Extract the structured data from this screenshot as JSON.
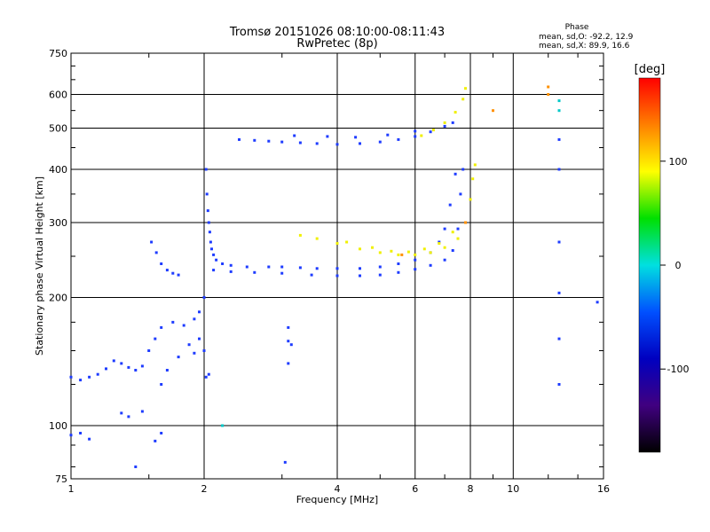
{
  "chart_data": {
    "type": "scatter",
    "title": "Tromsø 20151026 08:10:00-08:11:43",
    "subtitle": "RwPretec (8p)",
    "phase_info": {
      "heading": "Phase",
      "line_o": "mean, sd,O: -92.2, 12.9",
      "line_x": "mean, sd,X:  89.9, 16.6"
    },
    "xlabel": "Frequency [MHz]",
    "ylabel": "Stationary phase Virtual Height [km]",
    "x_scale": "log2",
    "y_scale": "log",
    "xlim": [
      1,
      16
    ],
    "ylim": [
      75,
      750
    ],
    "x_ticks": [
      1,
      2,
      4,
      6,
      8,
      10,
      16
    ],
    "x_tick_labels": [
      "1",
      "2",
      "4",
      "6",
      "8",
      "10",
      "16"
    ],
    "y_ticks": [
      75,
      100,
      200,
      300,
      400,
      500,
      600,
      750
    ],
    "y_tick_labels": [
      "75",
      "100",
      "200",
      "300",
      "400",
      "500",
      "600",
      "750"
    ],
    "grid": true,
    "colorbar": {
      "label": "[deg]",
      "range": [
        -180,
        180
      ],
      "ticks": [
        100,
        0,
        -100
      ],
      "tick_labels": [
        "100",
        "0",
        "-100"
      ],
      "colors": [
        "#ff0000",
        "#ff8000",
        "#ffff00",
        "#00e000",
        "#00e0e0",
        "#0050ff",
        "#0000c0",
        "#400080",
        "#000000"
      ]
    },
    "series": [
      {
        "color": "#1e3cff",
        "points": [
          [
            2.02,
            400
          ],
          [
            2.03,
            350
          ],
          [
            2.04,
            320
          ],
          [
            2.05,
            300
          ],
          [
            2.06,
            285
          ],
          [
            2.07,
            270
          ],
          [
            2.08,
            260
          ],
          [
            2.1,
            252
          ],
          [
            2.13,
            245
          ],
          [
            2.2,
            240
          ],
          [
            2.3,
            238
          ],
          [
            2.5,
            236
          ],
          [
            2.8,
            236
          ],
          [
            3.0,
            236
          ],
          [
            3.3,
            235
          ],
          [
            3.6,
            234
          ],
          [
            4.0,
            234
          ],
          [
            4.5,
            234
          ],
          [
            5.0,
            236
          ],
          [
            5.5,
            240
          ],
          [
            6.0,
            245
          ],
          [
            6.5,
            255
          ],
          [
            6.8,
            270
          ],
          [
            7.0,
            290
          ],
          [
            7.2,
            330
          ],
          [
            7.4,
            390
          ],
          [
            2.1,
            232
          ],
          [
            2.3,
            230
          ],
          [
            2.6,
            229
          ],
          [
            3.0,
            228
          ],
          [
            3.5,
            226
          ],
          [
            4.0,
            225
          ],
          [
            4.5,
            225
          ],
          [
            5.0,
            226
          ],
          [
            5.5,
            229
          ],
          [
            6.0,
            233
          ],
          [
            6.5,
            238
          ],
          [
            7.0,
            245
          ],
          [
            7.3,
            258
          ],
          [
            7.5,
            290
          ],
          [
            7.6,
            350
          ],
          [
            7.7,
            400
          ]
        ]
      },
      {
        "color": "#1e3cff",
        "points": [
          [
            2.4,
            470
          ],
          [
            2.6,
            468
          ],
          [
            2.8,
            466
          ],
          [
            3.0,
            464
          ],
          [
            3.3,
            462
          ],
          [
            3.6,
            460
          ],
          [
            4.0,
            458
          ],
          [
            4.5,
            460
          ],
          [
            5.0,
            464
          ],
          [
            5.5,
            470
          ],
          [
            6.0,
            478
          ],
          [
            6.5,
            490
          ],
          [
            7.0,
            505
          ],
          [
            7.3,
            515
          ],
          [
            3.2,
            480
          ],
          [
            3.8,
            478
          ],
          [
            4.4,
            476
          ],
          [
            5.2,
            482
          ],
          [
            6.0,
            492
          ]
        ]
      },
      {
        "color": "#f0f000",
        "points": [
          [
            3.3,
            280
          ],
          [
            3.6,
            275
          ],
          [
            4.0,
            268
          ],
          [
            4.5,
            260
          ],
          [
            5.0,
            255
          ],
          [
            5.5,
            252
          ],
          [
            6.0,
            252
          ],
          [
            6.5,
            255
          ],
          [
            7.0,
            262
          ],
          [
            7.5,
            275
          ],
          [
            7.8,
            300
          ],
          [
            8.0,
            340
          ],
          [
            8.1,
            380
          ],
          [
            8.2,
            410
          ],
          [
            4.2,
            270
          ],
          [
            4.8,
            262
          ],
          [
            5.3,
            257
          ],
          [
            5.8,
            256
          ],
          [
            6.3,
            260
          ],
          [
            6.8,
            268
          ],
          [
            7.3,
            285
          ],
          [
            6.2,
            480
          ],
          [
            6.6,
            495
          ],
          [
            7.0,
            515
          ],
          [
            7.4,
            545
          ],
          [
            7.7,
            585
          ],
          [
            7.8,
            620
          ]
        ]
      },
      {
        "color": "#ff9000",
        "points": [
          [
            5.6,
            252
          ],
          [
            7.8,
            300
          ],
          [
            12.0,
            625
          ],
          [
            12.0,
            600
          ],
          [
            9.0,
            550
          ]
        ]
      },
      {
        "color": "#1e3cff",
        "points": [
          [
            1.0,
            130
          ],
          [
            1.05,
            128
          ],
          [
            1.1,
            130
          ],
          [
            1.15,
            132
          ],
          [
            1.2,
            136
          ],
          [
            1.25,
            142
          ],
          [
            1.3,
            140
          ],
          [
            1.35,
            137
          ],
          [
            1.4,
            135
          ],
          [
            1.45,
            138
          ],
          [
            1.5,
            150
          ],
          [
            1.55,
            160
          ],
          [
            1.6,
            170
          ],
          [
            1.7,
            175
          ],
          [
            1.8,
            172
          ],
          [
            1.9,
            178
          ],
          [
            1.95,
            160
          ],
          [
            2.0,
            150
          ],
          [
            1.85,
            155
          ],
          [
            1.75,
            145
          ],
          [
            1.65,
            135
          ],
          [
            1.6,
            125
          ],
          [
            1.52,
            270
          ],
          [
            1.56,
            255
          ],
          [
            1.6,
            240
          ],
          [
            1.65,
            232
          ],
          [
            1.7,
            228
          ],
          [
            1.75,
            226
          ],
          [
            1.0,
            95
          ],
          [
            1.05,
            96
          ],
          [
            1.1,
            93
          ],
          [
            1.3,
            107
          ],
          [
            1.35,
            105
          ],
          [
            1.45,
            108
          ],
          [
            1.55,
            92
          ],
          [
            1.6,
            96
          ],
          [
            1.4,
            80
          ],
          [
            1.9,
            148
          ],
          [
            1.95,
            185
          ],
          [
            2.0,
            200
          ],
          [
            2.02,
            130
          ],
          [
            2.05,
            132
          ]
        ]
      },
      {
        "color": "#1e3cff",
        "points": [
          [
            3.1,
            170
          ],
          [
            3.1,
            158
          ],
          [
            3.1,
            140
          ],
          [
            3.15,
            155
          ],
          [
            3.05,
            82
          ],
          [
            12.7,
            205
          ],
          [
            12.7,
            160
          ],
          [
            12.7,
            125
          ],
          [
            12.7,
            470
          ],
          [
            12.7,
            400
          ],
          [
            12.7,
            270
          ],
          [
            15.5,
            195
          ]
        ]
      },
      {
        "color": "#00c8c8",
        "points": [
          [
            12.7,
            580
          ],
          [
            12.7,
            550
          ],
          [
            2.2,
            100
          ]
        ]
      }
    ]
  }
}
